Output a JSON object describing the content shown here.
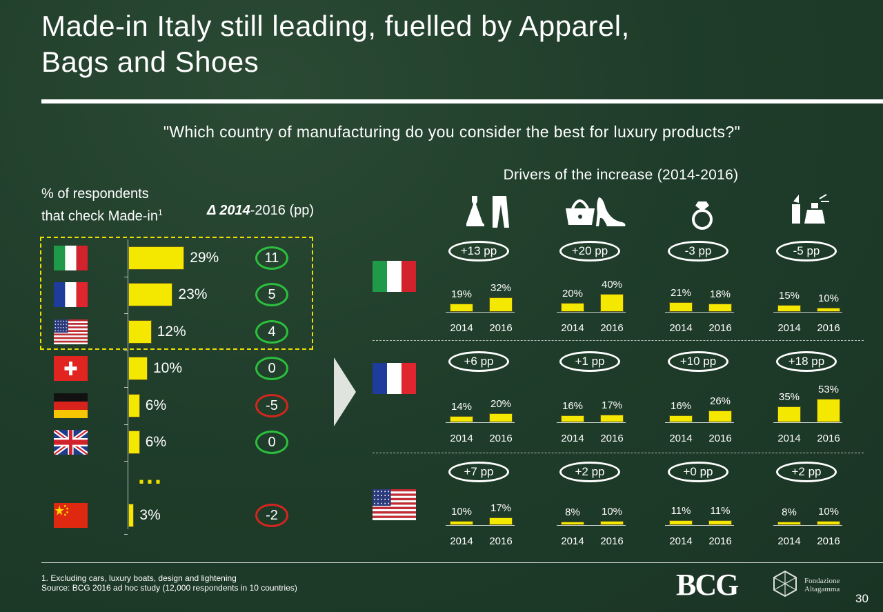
{
  "title_line1": "Made-in Italy still leading,  fuelled by Apparel,",
  "title_line2": "Bags and Shoes",
  "question": "\"Which country of manufacturing do you consider the best for luxury products?\"",
  "drivers_title": "Drivers of the increase (2014-2016)",
  "respondents_label_line1": "% of respondents",
  "respondents_label_line2": "that check Made-in",
  "footnote_marker": "1",
  "delta_label_italic": "Δ 2014",
  "delta_label_rest": "-2016 (pp)",
  "ellipsis": "...",
  "footnote1": "1. Excluding cars, luxury boats, design and lightening",
  "source": "Source: BCG 2016 ad hoc study (12,000 respondents in 10 countries)",
  "logo_bcg": "BCG",
  "logo_fondazione_line1": "Fondazione",
  "logo_fondazione_line2": "Altagamma",
  "page_number": "30",
  "colors": {
    "bar": "#f5e800",
    "positive": "#2cbf3d",
    "negative": "#d2261f",
    "neutral_small": "#f1e100",
    "highlight_box": "#f0e000"
  },
  "chart_data": [
    {
      "type": "bar",
      "orientation": "horizontal",
      "categories": [
        "Italy",
        "France",
        "USA",
        "Switzerland",
        "Germany",
        "UK",
        "China"
      ],
      "values": [
        29,
        23,
        12,
        10,
        6,
        6,
        3
      ],
      "value_labels": [
        "29%",
        "23%",
        "12%",
        "10%",
        "6%",
        "6%",
        "3%"
      ],
      "delta_2014_2016_pp": [
        "11",
        "5",
        "4",
        "0",
        "-5",
        "0",
        "-2"
      ],
      "delta_status": [
        "positive",
        "positive",
        "positive",
        "positive",
        "negative",
        "positive",
        "negative"
      ],
      "highlighted": [
        "Italy",
        "France",
        "USA"
      ]
    },
    {
      "type": "bar",
      "categories_columns": [
        "Apparel",
        "Bags and Shoes",
        "Jewellery",
        "Cosmetics and Perfumes"
      ],
      "years": [
        "2014",
        "2016"
      ],
      "rows": [
        {
          "country": "Italy",
          "cells": [
            {
              "change": "+13 pp",
              "status": "positive",
              "values": [
                19,
                32
              ],
              "labels": [
                "19%",
                "32%"
              ]
            },
            {
              "change": "+20 pp",
              "status": "positive",
              "values": [
                20,
                40
              ],
              "labels": [
                "20%",
                "40%"
              ]
            },
            {
              "change": "-3 pp",
              "status": "negative",
              "values": [
                21,
                18
              ],
              "labels": [
                "21%",
                "18%"
              ]
            },
            {
              "change": "-5 pp",
              "status": "negative",
              "values": [
                15,
                10
              ],
              "labels": [
                "15%",
                "10%"
              ]
            }
          ]
        },
        {
          "country": "France",
          "cells": [
            {
              "change": "+6 pp",
              "status": "positive",
              "values": [
                14,
                20
              ],
              "labels": [
                "14%",
                "20%"
              ]
            },
            {
              "change": "+1 pp",
              "status": "neutral_small",
              "values": [
                16,
                17
              ],
              "labels": [
                "16%",
                "17%"
              ]
            },
            {
              "change": "+10 pp",
              "status": "positive",
              "values": [
                16,
                26
              ],
              "labels": [
                "16%",
                "26%"
              ]
            },
            {
              "change": "+18 pp",
              "status": "positive",
              "values": [
                35,
                53
              ],
              "labels": [
                "35%",
                "53%"
              ]
            }
          ]
        },
        {
          "country": "USA",
          "cells": [
            {
              "change": "+7 pp",
              "status": "positive",
              "values": [
                10,
                17
              ],
              "labels": [
                "10%",
                "17%"
              ]
            },
            {
              "change": "+2 pp",
              "status": "neutral_small",
              "values": [
                8,
                10
              ],
              "labels": [
                "8%",
                "10%"
              ]
            },
            {
              "change": "+0 pp",
              "status": "negative",
              "values": [
                11,
                11
              ],
              "labels": [
                "11%",
                "11%"
              ]
            },
            {
              "change": "+2 pp",
              "status": "neutral_small",
              "values": [
                8,
                10
              ],
              "labels": [
                "8%",
                "10%"
              ]
            }
          ]
        }
      ]
    }
  ],
  "icons": [
    "dress-trousers-icon",
    "handbag-heel-icon",
    "ring-icon",
    "lipstick-perfume-icon"
  ]
}
